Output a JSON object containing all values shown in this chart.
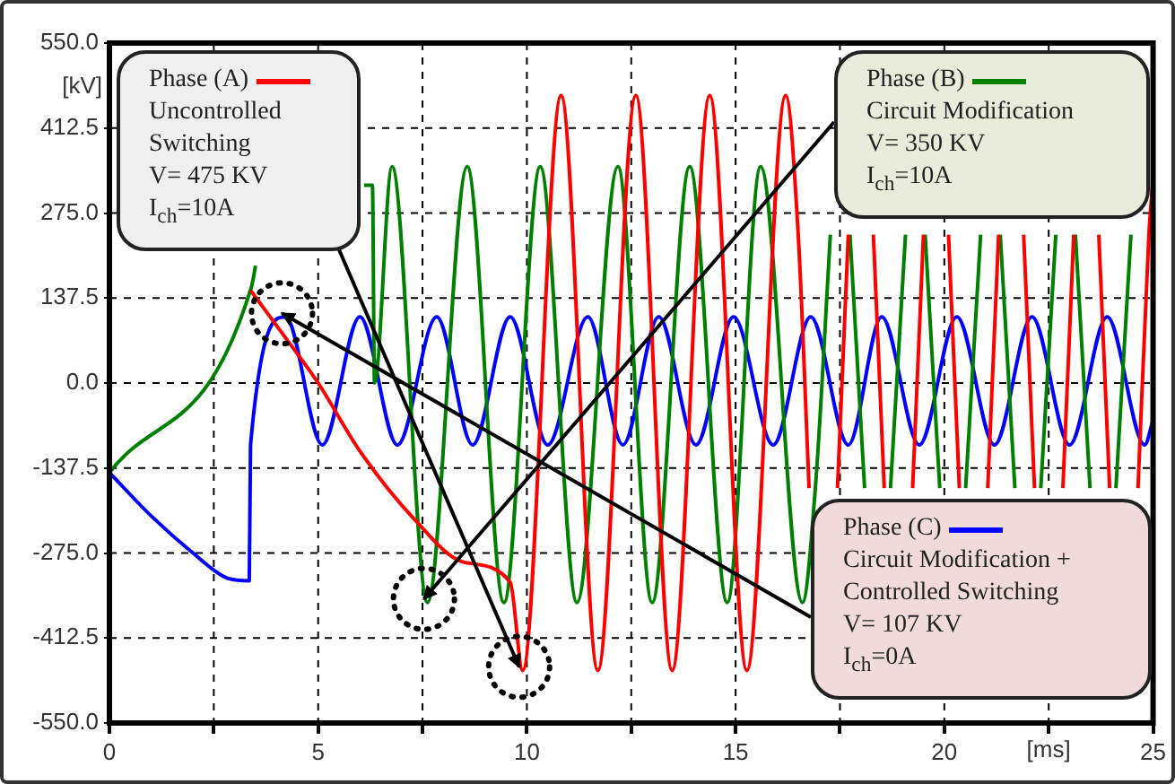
{
  "chart_data": {
    "type": "line",
    "xlabel": "[ms]",
    "ylabel": "[kV]",
    "legend": "top",
    "xlim": [
      0,
      25
    ],
    "xticks": [
      0,
      {
        "value": 2.5,
        "label": null
      },
      5,
      {
        "value": 7.5,
        "label": null
      },
      10,
      {
        "value": 12.5,
        "label": null
      },
      15,
      {
        "value": 17.5,
        "label": null
      },
      20,
      {
        "value": 22.5,
        "label": null
      },
      25
    ],
    "ylim": [
      -550,
      550
    ],
    "yticks": [
      {
        "value": -550,
        "label": "-550.0"
      },
      {
        "value": -412.5,
        "label": "-412.5"
      },
      {
        "value": -275,
        "label": "-275.0"
      },
      {
        "value": -137.5,
        "label": "-137.5"
      },
      {
        "value": 0,
        "label": "0.0"
      },
      {
        "value": 137.5,
        "label": "137.5"
      },
      {
        "value": 275,
        "label": "275.0"
      },
      {
        "value": 412.5,
        "label": "412.5"
      },
      {
        "value": 550,
        "label": "550.0"
      }
    ],
    "grid": true,
    "marker": "none",
    "line_style": "solid",
    "series": [
      {
        "name": "Phase (A)",
        "color": "#ff0000",
        "x": [
          3.38,
          4.2,
          5,
          6,
          7.3,
          8.5,
          9.6,
          9.9,
          10.82,
          11.7,
          12.61,
          13.48,
          14.38,
          15.27,
          16.2,
          16.5,
          16.76,
          17.1,
          17.44,
          17.7,
          18,
          18.3,
          18.56,
          18.9,
          19.24,
          19.5,
          19.8,
          20.1,
          20.36,
          20.7,
          21.04,
          21.3,
          21.6,
          21.9,
          22.16,
          22.5,
          22.84,
          23.1,
          23.4,
          23.7,
          23.96,
          24.3,
          24.64,
          24.9,
          25
        ],
        "values": [
          150,
          75,
          0,
          -110,
          -220,
          -290,
          -322,
          -465,
          465,
          -465,
          465,
          -465,
          465,
          -465,
          465,
          240,
          -170,
          null,
          -170,
          240,
          null,
          240,
          -170,
          null,
          -170,
          240,
          null,
          240,
          -170,
          null,
          -170,
          240,
          null,
          240,
          -170,
          null,
          -170,
          240,
          null,
          240,
          -170,
          null,
          -170,
          240,
          330
        ]
      },
      {
        "name": "Phase (B)",
        "color": "#008000",
        "x": [
          0,
          3.4,
          3.5,
          3.6,
          6.1,
          6.3,
          6.35,
          6.77,
          7.62,
          8.57,
          9.45,
          10.32,
          11.2,
          12.18,
          13,
          13.9,
          14.8,
          15.6,
          16.6,
          16.91,
          17.27,
          17.5,
          17.74,
          18.09,
          18.4,
          18.71,
          19.07,
          19.3,
          19.54,
          19.89,
          20.2,
          20.51,
          20.87,
          21.1,
          21.34,
          21.69,
          22,
          22.31,
          22.67,
          22.9,
          23.14,
          23.49,
          23.8,
          24.11,
          24.47
        ],
        "values": [
          -145,
          155,
          190,
          null,
          320,
          320,
          0,
          350,
          -355,
          350,
          -355,
          350,
          -355,
          350,
          -355,
          350,
          -355,
          350,
          -355,
          -170,
          240,
          null,
          240,
          -170,
          null,
          -170,
          240,
          null,
          240,
          -170,
          null,
          -170,
          240,
          null,
          240,
          -170,
          null,
          -170,
          240,
          null,
          240,
          -170,
          null,
          -170,
          240
        ]
      },
      {
        "name": "Phase (C)",
        "color": "#0000ff",
        "x": [
          0,
          1,
          2,
          2.8,
          3.35,
          3.38,
          4.22,
          5.1,
          6,
          6.9,
          7.84,
          8.7,
          9.6,
          10.5,
          11.46,
          12.3,
          13.16,
          14.05,
          14.95,
          15.9,
          16.8,
          17.7,
          18.5,
          19.4,
          20.3,
          21.2,
          22.1,
          23,
          23.9,
          24.8,
          25
        ],
        "values": [
          -145,
          -215,
          -275,
          -315,
          -320,
          -100,
          107,
          -100,
          107,
          -100,
          107,
          -100,
          107,
          -100,
          107,
          -100,
          107,
          -100,
          107,
          -100,
          107,
          -100,
          107,
          -100,
          107,
          -100,
          107,
          -100,
          107,
          -100,
          -60
        ]
      }
    ],
    "annotations": [
      {
        "text": "Uncontrolled\nSwitching\nV= 475 KV\nI$_{ch}$=10A",
        "x": 9.9,
        "y": -465
      },
      {
        "text": "Circuit Modification\nV= 350 KV\nI$_{ch}$=10A",
        "x": 7.62,
        "y": -355
      },
      {
        "text": "Circuit Modification +\nControlled Switching\nV= 107 KV\nI$_{ch}$=0A",
        "x": 4.22,
        "y": 107
      }
    ]
  }
}
